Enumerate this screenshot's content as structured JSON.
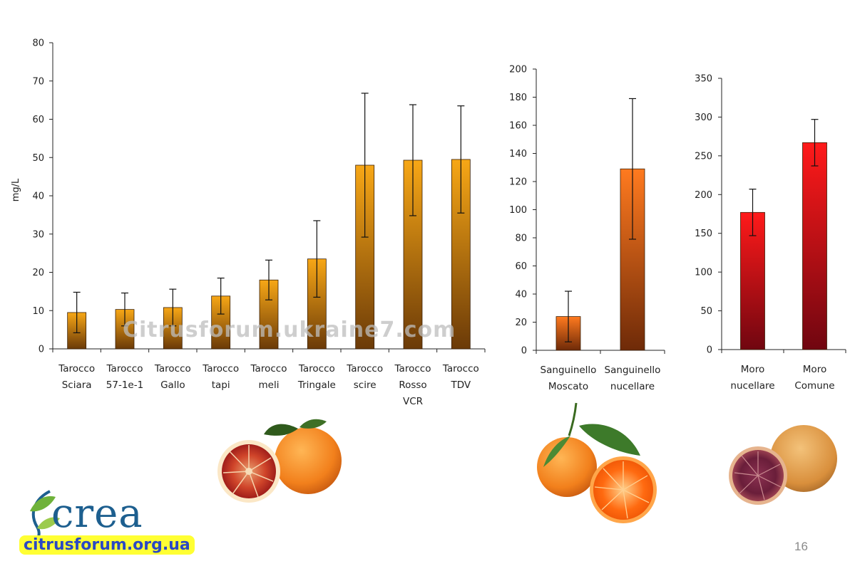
{
  "chart_data": [
    {
      "type": "bar",
      "ylabel": "mg/L",
      "ylim": [
        0,
        80
      ],
      "yticks": [
        "0",
        "10",
        "20",
        "30",
        "40",
        "50",
        "60",
        "70",
        "80"
      ],
      "categories": [
        [
          "Tarocco",
          "Sciara"
        ],
        [
          "Tarocco",
          "57-1e-1"
        ],
        [
          "Tarocco",
          "Gallo"
        ],
        [
          "Tarocco",
          "tapi"
        ],
        [
          "Tarocco",
          "meli"
        ],
        [
          "Tarocco",
          "Tringale"
        ],
        [
          "Tarocco",
          "scire"
        ],
        [
          "Tarocco",
          "Rosso",
          "VCR"
        ],
        [
          "Tarocco",
          "TDV"
        ]
      ],
      "values": [
        9.5,
        10.3,
        10.8,
        13.8,
        18.0,
        23.5,
        48.0,
        49.3,
        49.5
      ],
      "errors": [
        5.3,
        4.3,
        4.8,
        4.7,
        5.2,
        10.0,
        18.8,
        14.5,
        14.0
      ],
      "color": "#f09b10"
    },
    {
      "type": "bar",
      "ylim": [
        0,
        200
      ],
      "yticks": [
        "0",
        "20",
        "40",
        "60",
        "80",
        "100",
        "120",
        "140",
        "160",
        "180",
        "200"
      ],
      "categories": [
        [
          "Sanguinello",
          "Moscato"
        ],
        [
          "Sanguinello",
          "nucellare"
        ]
      ],
      "values": [
        24,
        129
      ],
      "errors": [
        18,
        50
      ],
      "color": "#f0661c"
    },
    {
      "type": "bar",
      "ylim": [
        0,
        350
      ],
      "yticks": [
        "0",
        "50",
        "100",
        "150",
        "200",
        "250",
        "300",
        "350"
      ],
      "categories": [
        [
          "Moro",
          "nucellare"
        ],
        [
          "Moro",
          "Comune"
        ]
      ],
      "values": [
        177,
        267
      ],
      "errors": [
        30,
        30
      ],
      "color": "#f01818"
    }
  ],
  "watermark": "Citrusforum.ukraine7.com",
  "logo": {
    "word": "crea",
    "icon": "crea-leaf-icon"
  },
  "site_badge": "citrusforum.org.ua",
  "page_number": "16",
  "images": [
    "tarocco-orange-icon",
    "sanguinello-orange-icon",
    "moro-orange-icon"
  ]
}
